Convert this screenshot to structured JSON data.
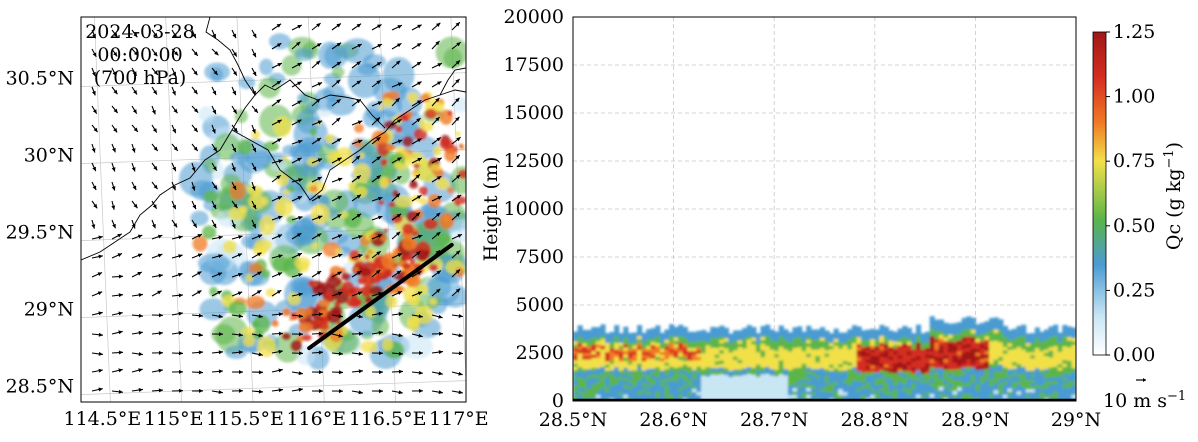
{
  "chart_data": [
    {
      "type": "heatmap",
      "subtype": "map",
      "annotation": [
        "2024-03-28",
        "00:00:00",
        "(700 hPa)"
      ],
      "x_ticks": [
        "114.5°E",
        "115°E",
        "115.5°E",
        "116°E",
        "116.5°E",
        "117°E"
      ],
      "y_ticks": [
        "28.5°N",
        "29°N",
        "29.5°N",
        "30°N",
        "30.5°N"
      ],
      "lon_range": [
        114.35,
        117.05
      ],
      "lat_range": [
        28.4,
        30.9
      ],
      "cross_section_line": {
        "start": {
          "lon": 115.95,
          "lat": 28.75
        },
        "end": {
          "lon": 116.95,
          "lat": 29.42
        }
      },
      "wind_vectors": true,
      "grid": true
    },
    {
      "type": "heatmap",
      "subtype": "cross-section",
      "xlabel": "",
      "ylabel": "Height (m)",
      "x_ticks": [
        "28.5°N",
        "28.6°N",
        "28.7°N",
        "28.8°N",
        "28.9°N",
        "29°N"
      ],
      "x_values": [
        28.5,
        28.6,
        28.7,
        28.8,
        28.9,
        29.0
      ],
      "xlim": [
        28.5,
        29.0
      ],
      "y_ticks": [
        0,
        2500,
        5000,
        7500,
        10000,
        12500,
        15000,
        17500,
        20000
      ],
      "ylim": [
        0,
        20000
      ],
      "cloud_top_m": 4000,
      "grid": true
    }
  ],
  "colorbar": {
    "label": "Qc (g kg",
    "label_exp": "−1",
    "label_close": ")",
    "ticks": [
      "0.00",
      "0.25",
      "0.50",
      "0.75",
      "1.00",
      "1.25"
    ],
    "values": [
      0,
      0.25,
      0.5,
      0.75,
      1.0,
      1.25
    ],
    "colors": [
      "#ffffff",
      "#c9e6f5",
      "#4a9bd2",
      "#5bb548",
      "#f2e04a",
      "#f07a24",
      "#d42d20",
      "#a01818"
    ]
  },
  "vector_key": {
    "label": "10 m s",
    "exp": "−1"
  }
}
